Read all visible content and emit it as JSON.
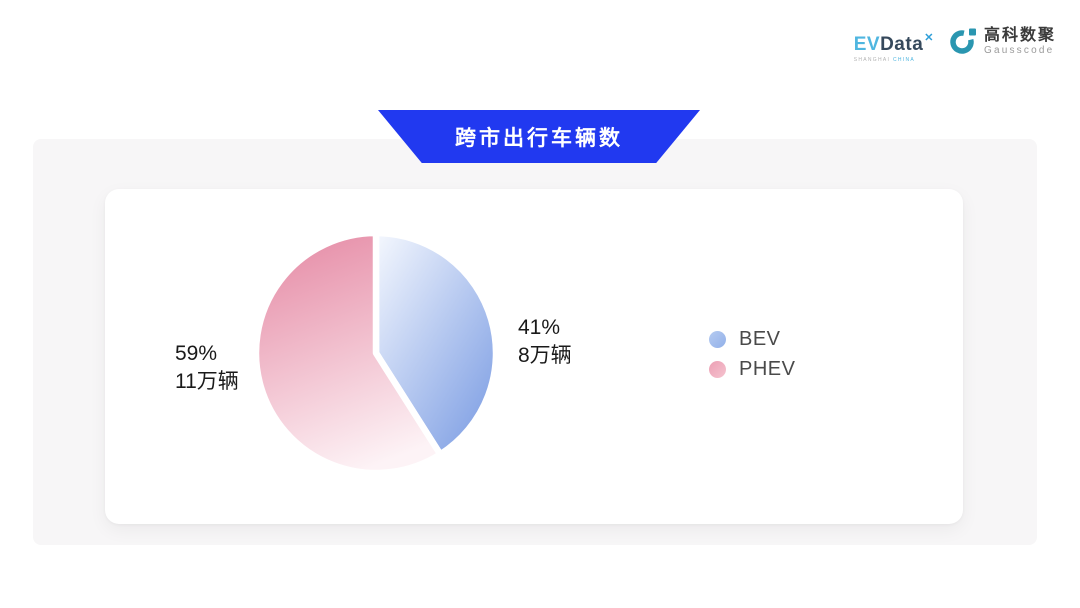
{
  "page": {
    "background": "#ffffff",
    "panel_background": "#f7f6f7"
  },
  "header": {
    "evdata": {
      "ev": "EV",
      "data": "Data",
      "mark": "✕",
      "sub_left": "SHANGHAI ",
      "sub_right": "CHINA"
    },
    "gausscode": {
      "cn": "高科数聚",
      "en": "Gausscode",
      "icon_color": "#2a96b0"
    }
  },
  "banner": {
    "title": "跨市出行车辆数",
    "background": "#2139f0",
    "text_color": "#ffffff"
  },
  "chart_data": {
    "type": "pie",
    "title": "跨市出行车辆数",
    "unit": "万辆",
    "start_angle_deg": 0,
    "direction": "clockwise",
    "legend_position": "right",
    "gap_color": "#ffffff",
    "series": [
      {
        "name": "BEV",
        "percent": 41,
        "value": 8,
        "percent_label": "41%",
        "value_label": "8万辆",
        "gradient": [
          "#f5f8fe",
          "#7c9de3"
        ],
        "gradient_dir": [
          0,
          0,
          0.9,
          1
        ],
        "legend_colors": [
          "#b5cbf1",
          "#92b0e9"
        ]
      },
      {
        "name": "PHEV",
        "percent": 59,
        "value": 11,
        "percent_label": "59%",
        "value_label": "11万辆",
        "gradient": [
          "#e68da7",
          "#fdf3f6"
        ],
        "gradient_dir": [
          0.25,
          0,
          0.55,
          1
        ],
        "legend_colors": [
          "#ec9fb4",
          "#f5c3cf"
        ]
      }
    ]
  }
}
